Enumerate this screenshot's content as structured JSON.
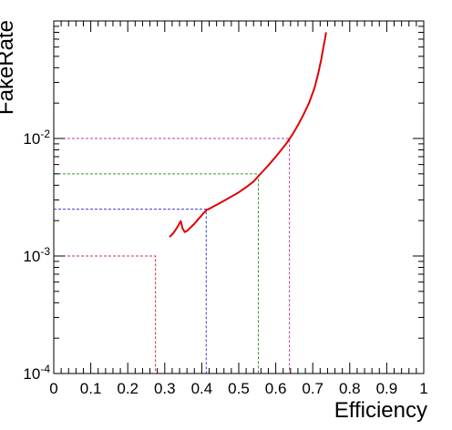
{
  "chart_data": {
    "type": "line",
    "title": "",
    "xlabel": "Efficiency",
    "ylabel": "FakeRate",
    "xlim": [
      0,
      1
    ],
    "ylim": [
      0.0001,
      0.1
    ],
    "yscale": "log",
    "grid": false,
    "x_ticks": [
      {
        "value": 0,
        "label": "0"
      },
      {
        "value": 0.1,
        "label": "0.1"
      },
      {
        "value": 0.2,
        "label": "0.2"
      },
      {
        "value": 0.3,
        "label": "0.3"
      },
      {
        "value": 0.4,
        "label": "0.4"
      },
      {
        "value": 0.5,
        "label": "0.5"
      },
      {
        "value": 0.6,
        "label": "0.6"
      },
      {
        "value": 0.7,
        "label": "0.7"
      },
      {
        "value": 0.8,
        "label": "0.8"
      },
      {
        "value": 0.9,
        "label": "0.9"
      },
      {
        "value": 1,
        "label": "1"
      }
    ],
    "y_ticks": [
      {
        "value": 0.0001,
        "base": "10",
        "exp": "-4"
      },
      {
        "value": 0.001,
        "base": "10",
        "exp": "-3"
      },
      {
        "value": 0.01,
        "base": "10",
        "exp": "-2"
      }
    ],
    "series": [
      {
        "color": "#e00000",
        "x": [
          0.313,
          0.322,
          0.33,
          0.338,
          0.343,
          0.348,
          0.354,
          0.362,
          0.37,
          0.38,
          0.39,
          0.398,
          0.405,
          0.412,
          0.42,
          0.43,
          0.445,
          0.46,
          0.48,
          0.5,
          0.52,
          0.54,
          0.555,
          0.57,
          0.585,
          0.6,
          0.615,
          0.63,
          0.645,
          0.66,
          0.675,
          0.69,
          0.705,
          0.715,
          0.723,
          0.728,
          0.733,
          0.736
        ],
        "y": [
          0.00145,
          0.00155,
          0.00168,
          0.00185,
          0.00198,
          0.00172,
          0.0016,
          0.00165,
          0.00175,
          0.00188,
          0.00205,
          0.00218,
          0.00232,
          0.00245,
          0.00252,
          0.00262,
          0.00278,
          0.00295,
          0.0032,
          0.00348,
          0.00385,
          0.0043,
          0.00485,
          0.00545,
          0.00615,
          0.007,
          0.008,
          0.0092,
          0.0108,
          0.013,
          0.016,
          0.02,
          0.027,
          0.036,
          0.047,
          0.058,
          0.07,
          0.08
        ]
      }
    ],
    "reference_lines": [
      {
        "color": "#d03030",
        "x": 0.275,
        "y": 0.001
      },
      {
        "color": "#3a3ad8",
        "x": 0.412,
        "y": 0.0025
      },
      {
        "color": "#2a9a2a",
        "x": 0.553,
        "y": 0.005
      },
      {
        "color": "#b040b0",
        "x": 0.637,
        "y": 0.01
      }
    ]
  }
}
